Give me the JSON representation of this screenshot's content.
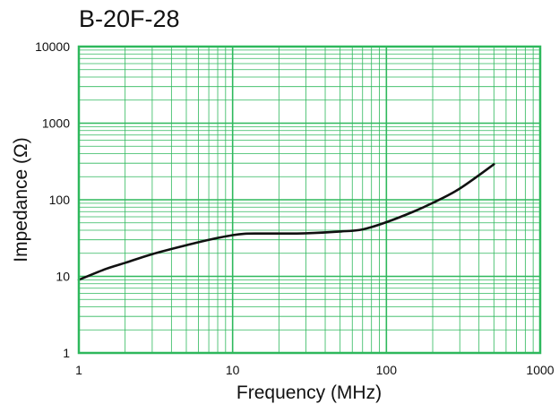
{
  "chart_data": {
    "type": "line",
    "title": "B-20F-28",
    "xlabel": "Frequency (MHz)",
    "ylabel": "Impedance (Ω)",
    "x_scale": "log",
    "y_scale": "log",
    "xlim": [
      1,
      1000
    ],
    "ylim": [
      1,
      10000
    ],
    "x_ticks": [
      "1",
      "10",
      "100",
      "1000"
    ],
    "y_ticks": [
      "1",
      "10",
      "100",
      "1000",
      "10000"
    ],
    "grid": true,
    "colors": {
      "grid": "#2eb85c",
      "line": "#111111"
    },
    "series": [
      {
        "x": [
          1,
          1.5,
          2,
          3,
          5,
          7,
          10,
          12,
          15,
          20,
          30,
          50,
          70,
          100,
          150,
          200,
          300,
          500
        ],
        "y": [
          9,
          12.5,
          15,
          19.5,
          25.5,
          30,
          34.5,
          36,
          36.2,
          36.2,
          36.5,
          38.5,
          41,
          51,
          70,
          91,
          140,
          290
        ]
      }
    ]
  }
}
